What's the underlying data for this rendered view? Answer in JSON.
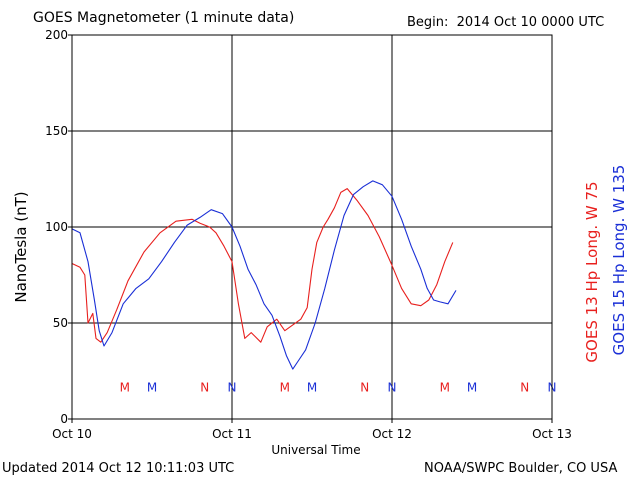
{
  "header": {
    "title": "GOES Magnetometer (1 minute data)",
    "begin": "Begin:  2014 Oct 10 0000 UTC"
  },
  "footer": {
    "updated": "Updated 2014 Oct 12 10:11:03 UTC",
    "credit": "NOAA/SWPC Boulder, CO USA"
  },
  "colors": {
    "goes13": "#e8201e",
    "goes15": "#1a2fd6",
    "axis": "#000000"
  },
  "chart_data": {
    "type": "line",
    "title": "GOES Magnetometer (1 minute data)",
    "xlabel": "Universal Time",
    "ylabel": "NanoTesla (nT)",
    "ylim": [
      0,
      200
    ],
    "xlim_days": [
      0,
      3
    ],
    "yticks": [
      0,
      50,
      100,
      150,
      200
    ],
    "xtick_labels": [
      "Oct 10",
      "Oct 11",
      "Oct 12",
      "Oct 13"
    ],
    "grid": true,
    "series": [
      {
        "name": "GOES 13 Hp  Long. W 75",
        "color": "#e8201e",
        "points": [
          [
            0.0,
            81
          ],
          [
            0.05,
            79
          ],
          [
            0.08,
            75
          ],
          [
            0.1,
            50
          ],
          [
            0.13,
            55
          ],
          [
            0.15,
            42
          ],
          [
            0.18,
            40
          ],
          [
            0.22,
            45
          ],
          [
            0.28,
            57
          ],
          [
            0.35,
            72
          ],
          [
            0.45,
            87
          ],
          [
            0.55,
            97
          ],
          [
            0.65,
            103
          ],
          [
            0.75,
            104
          ],
          [
            0.8,
            102
          ],
          [
            0.86,
            100
          ],
          [
            0.9,
            97
          ],
          [
            0.95,
            90
          ],
          [
            1.0,
            82
          ],
          [
            1.04,
            60
          ],
          [
            1.08,
            42
          ],
          [
            1.12,
            45
          ],
          [
            1.18,
            40
          ],
          [
            1.22,
            48
          ],
          [
            1.28,
            52
          ],
          [
            1.33,
            46
          ],
          [
            1.38,
            49
          ],
          [
            1.43,
            52
          ],
          [
            1.47,
            58
          ],
          [
            1.5,
            78
          ],
          [
            1.53,
            92
          ],
          [
            1.57,
            100
          ],
          [
            1.6,
            104
          ],
          [
            1.64,
            110
          ],
          [
            1.68,
            118
          ],
          [
            1.72,
            120
          ],
          [
            1.78,
            114
          ],
          [
            1.85,
            106
          ],
          [
            1.92,
            95
          ],
          [
            2.0,
            80
          ],
          [
            2.06,
            68
          ],
          [
            2.12,
            60
          ],
          [
            2.18,
            59
          ],
          [
            2.23,
            62
          ],
          [
            2.28,
            70
          ],
          [
            2.33,
            82
          ],
          [
            2.38,
            92
          ]
        ]
      },
      {
        "name": "GOES 15 Hp  Long. W 135",
        "color": "#1a2fd6",
        "points": [
          [
            0.0,
            99
          ],
          [
            0.05,
            97
          ],
          [
            0.1,
            82
          ],
          [
            0.14,
            62
          ],
          [
            0.17,
            46
          ],
          [
            0.2,
            38
          ],
          [
            0.25,
            45
          ],
          [
            0.32,
            60
          ],
          [
            0.4,
            68
          ],
          [
            0.48,
            73
          ],
          [
            0.56,
            82
          ],
          [
            0.64,
            92
          ],
          [
            0.72,
            101
          ],
          [
            0.8,
            105
          ],
          [
            0.87,
            109
          ],
          [
            0.94,
            107
          ],
          [
            1.0,
            100
          ],
          [
            1.05,
            90
          ],
          [
            1.1,
            78
          ],
          [
            1.15,
            70
          ],
          [
            1.2,
            60
          ],
          [
            1.25,
            54
          ],
          [
            1.3,
            43
          ],
          [
            1.34,
            33
          ],
          [
            1.38,
            26
          ],
          [
            1.42,
            31
          ],
          [
            1.46,
            36
          ],
          [
            1.52,
            50
          ],
          [
            1.58,
            68
          ],
          [
            1.64,
            88
          ],
          [
            1.7,
            106
          ],
          [
            1.76,
            117
          ],
          [
            1.82,
            121
          ],
          [
            1.88,
            124
          ],
          [
            1.94,
            122
          ],
          [
            2.0,
            116
          ],
          [
            2.06,
            104
          ],
          [
            2.12,
            90
          ],
          [
            2.18,
            78
          ],
          [
            2.22,
            68
          ],
          [
            2.26,
            62
          ],
          [
            2.3,
            61
          ],
          [
            2.35,
            60
          ],
          [
            2.4,
            67
          ]
        ]
      }
    ],
    "markers": [
      {
        "label": "M",
        "x": 0.33,
        "color": "#e8201e"
      },
      {
        "label": "M",
        "x": 0.5,
        "color": "#1a2fd6"
      },
      {
        "label": "N",
        "x": 0.83,
        "color": "#e8201e"
      },
      {
        "label": "N",
        "x": 1.0,
        "color": "#1a2fd6"
      },
      {
        "label": "M",
        "x": 1.33,
        "color": "#e8201e"
      },
      {
        "label": "M",
        "x": 1.5,
        "color": "#1a2fd6"
      },
      {
        "label": "N",
        "x": 1.83,
        "color": "#e8201e"
      },
      {
        "label": "N",
        "x": 2.0,
        "color": "#1a2fd6"
      },
      {
        "label": "M",
        "x": 2.33,
        "color": "#e8201e"
      },
      {
        "label": "M",
        "x": 2.5,
        "color": "#1a2fd6"
      },
      {
        "label": "N",
        "x": 2.83,
        "color": "#e8201e"
      },
      {
        "label": "N",
        "x": 3.0,
        "color": "#1a2fd6"
      }
    ],
    "marker_value": 17
  }
}
